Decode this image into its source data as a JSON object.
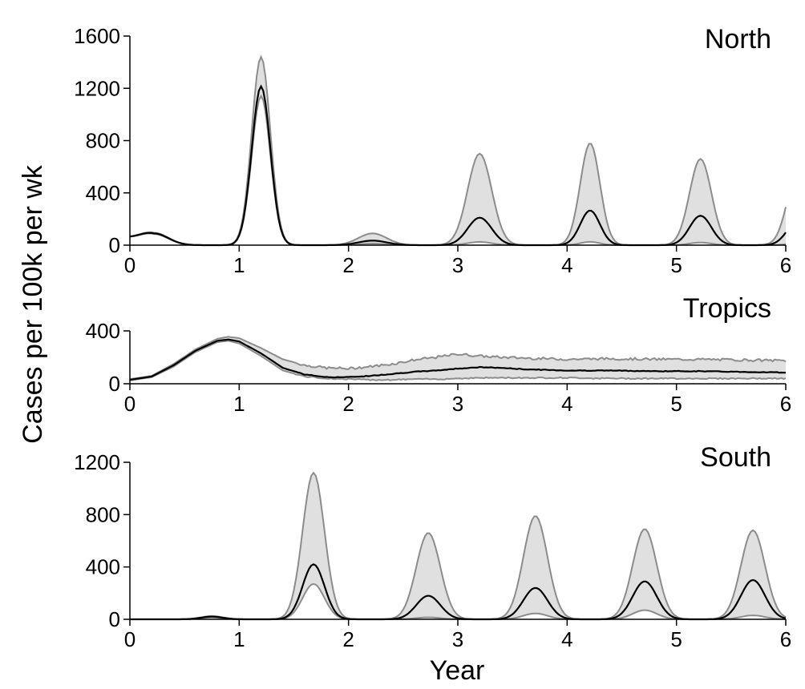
{
  "figure": {
    "ylabel": "Cases per 100k per wk",
    "xlabel": "Year"
  },
  "colors": {
    "band_fill": "#e0e0e0",
    "band_edge": "#8c8c8c",
    "median": "#000000",
    "axis": "#000000"
  },
  "chart_data": [
    {
      "type": "area",
      "title": "North",
      "xlim": [
        0,
        6
      ],
      "ylim": [
        0,
        1600
      ],
      "xticks": [
        0,
        1,
        2,
        3,
        4,
        5,
        6
      ],
      "yticks": [
        0,
        400,
        800,
        1200,
        1600
      ],
      "xtick_labels": [
        "0",
        "1",
        "2",
        "3",
        "4",
        "5",
        "6"
      ],
      "ytick_labels": [
        "0",
        "400",
        "800",
        "1200",
        "1600"
      ],
      "grid": false,
      "peaks": [
        {
          "t": 0.22,
          "w": 0.13,
          "up": 95,
          "med": 90,
          "lo": 85
        },
        {
          "t": 1.2,
          "w": 0.085,
          "up": 1440,
          "med": 1215,
          "lo": 1140
        },
        {
          "t": 2.22,
          "w": 0.13,
          "up": 90,
          "med": 35,
          "lo": 12
        },
        {
          "t": 3.2,
          "w": 0.11,
          "up": 700,
          "med": 210,
          "lo": 25
        },
        {
          "t": 4.21,
          "w": 0.09,
          "up": 780,
          "med": 265,
          "lo": 25
        },
        {
          "t": 5.22,
          "w": 0.1,
          "up": 660,
          "med": 225,
          "lo": 20
        },
        {
          "t": 6.12,
          "w": 0.1,
          "up": 600,
          "med": 200,
          "lo": 15
        }
      ],
      "base": {
        "up": 0,
        "med": 0,
        "lo": 0
      },
      "noise": 0
    },
    {
      "type": "area",
      "title": "Tropics",
      "xlim": [
        0,
        6
      ],
      "ylim": [
        0,
        400
      ],
      "xticks": [
        0,
        1,
        2,
        3,
        4,
        5,
        6
      ],
      "yticks": [
        0,
        400
      ],
      "xtick_labels": [
        "0",
        "1",
        "2",
        "3",
        "4",
        "5",
        "6"
      ],
      "ytick_labels": [
        "0",
        "400"
      ],
      "grid": false,
      "curves": {
        "x": [
          0,
          0.2,
          0.4,
          0.6,
          0.8,
          0.9,
          1.0,
          1.2,
          1.4,
          1.6,
          1.8,
          2.0,
          2.2,
          2.4,
          2.6,
          2.8,
          3.0,
          3.2,
          3.4,
          3.6,
          3.8,
          4.0,
          4.4,
          4.8,
          5.2,
          5.6,
          6.0
        ],
        "upper": [
          35,
          60,
          150,
          260,
          340,
          355,
          345,
          270,
          185,
          140,
          120,
          115,
          130,
          150,
          180,
          200,
          225,
          210,
          200,
          195,
          190,
          185,
          190,
          185,
          185,
          180,
          175
        ],
        "median": [
          30,
          55,
          140,
          250,
          325,
          335,
          320,
          230,
          120,
          70,
          50,
          50,
          60,
          75,
          90,
          100,
          115,
          125,
          120,
          110,
          105,
          100,
          100,
          95,
          95,
          90,
          85
        ],
        "lower": [
          25,
          50,
          130,
          240,
          315,
          325,
          305,
          210,
          100,
          55,
          40,
          35,
          30,
          30,
          35,
          35,
          40,
          45,
          45,
          45,
          45,
          45,
          40,
          40,
          40,
          40,
          40
        ]
      },
      "noise": 9
    },
    {
      "type": "area",
      "title": "South",
      "xlim": [
        0,
        6
      ],
      "ylim": [
        0,
        1200
      ],
      "xticks": [
        0,
        1,
        2,
        3,
        4,
        5,
        6
      ],
      "yticks": [
        0,
        400,
        800,
        1200
      ],
      "xtick_labels": [
        "0",
        "1",
        "2",
        "3",
        "4",
        "5",
        "6"
      ],
      "ytick_labels": [
        "0",
        "400",
        "800",
        "1200"
      ],
      "grid": false,
      "peaks": [
        {
          "t": 0.75,
          "w": 0.1,
          "up": 25,
          "med": 20,
          "lo": 15
        },
        {
          "t": 1.68,
          "w": 0.1,
          "up": 1120,
          "med": 420,
          "lo": 270
        },
        {
          "t": 2.73,
          "w": 0.11,
          "up": 660,
          "med": 180,
          "lo": 15
        },
        {
          "t": 3.71,
          "w": 0.11,
          "up": 790,
          "med": 240,
          "lo": 45
        },
        {
          "t": 4.71,
          "w": 0.11,
          "up": 690,
          "med": 290,
          "lo": 70
        },
        {
          "t": 5.7,
          "w": 0.11,
          "up": 680,
          "med": 300,
          "lo": 30
        }
      ],
      "base": {
        "up": 0,
        "med": 0,
        "lo": 0
      },
      "noise": 0
    }
  ]
}
